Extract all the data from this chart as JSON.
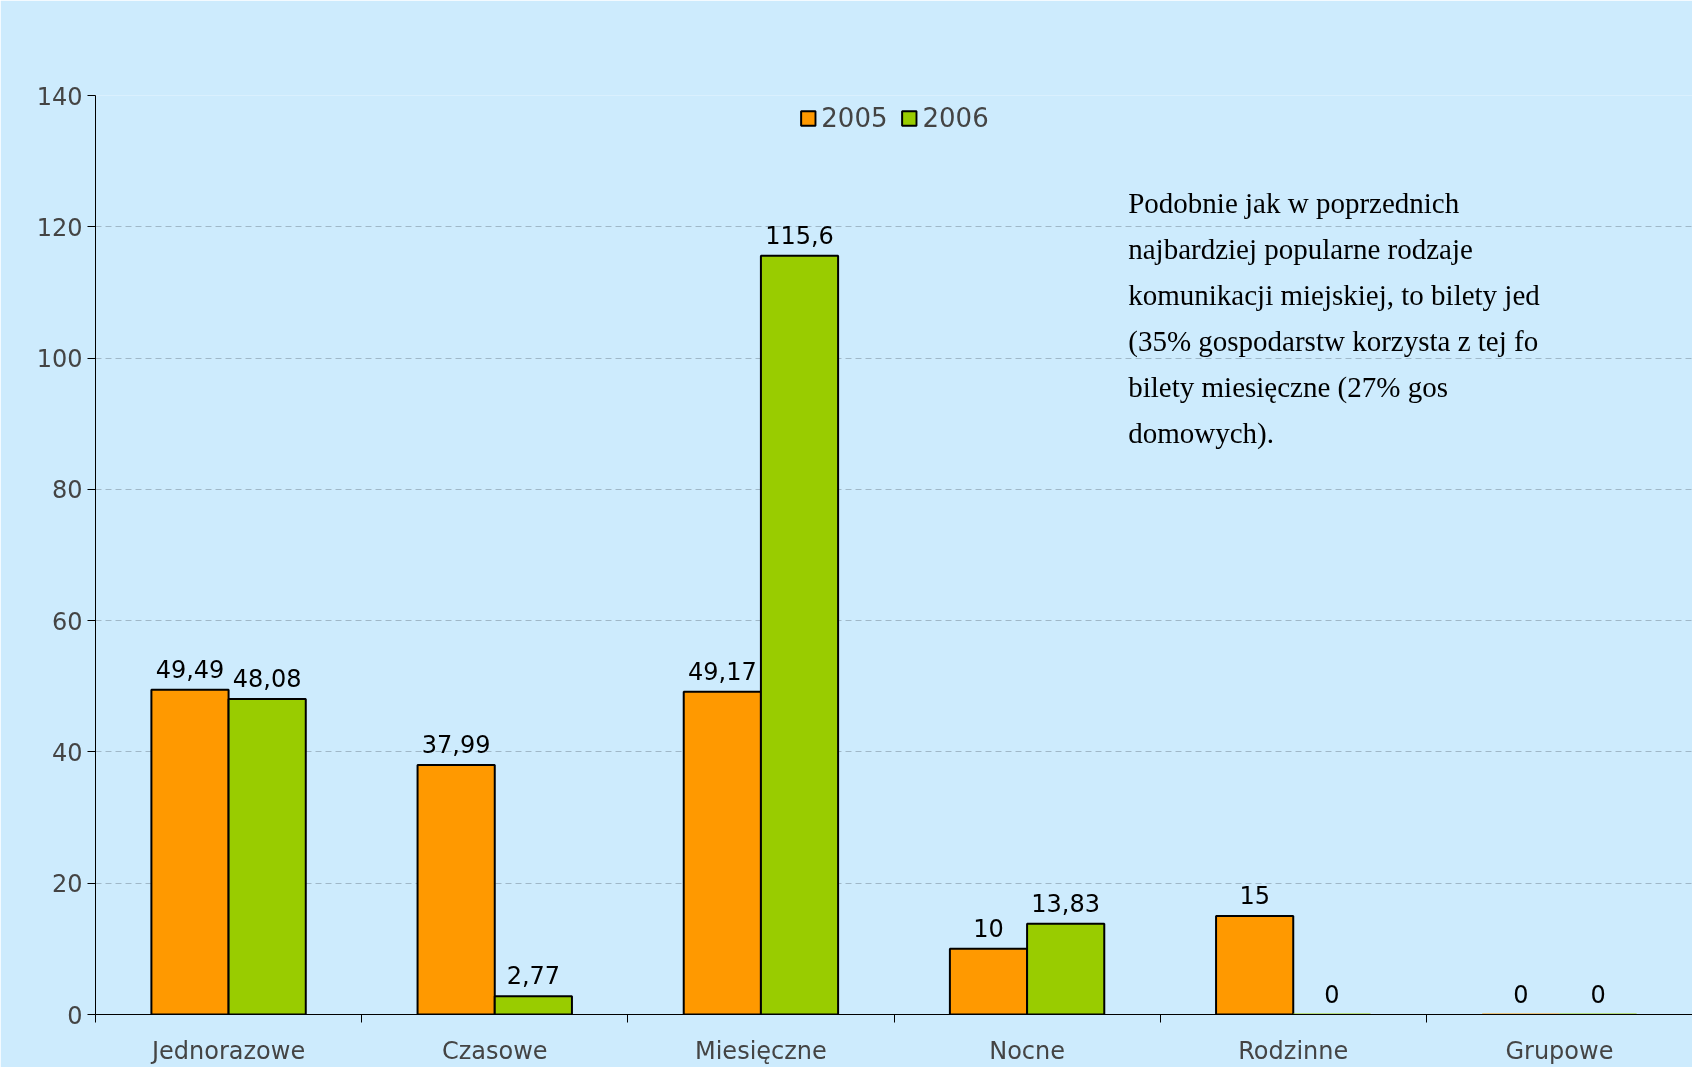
{
  "chart_data": {
    "type": "bar",
    "categories": [
      "Jednorazowe",
      "Czasowe",
      "Miesięczne",
      "Nocne",
      "Rodzinne",
      "Grupowe"
    ],
    "series": [
      {
        "name": "2005",
        "color": "#ff9900",
        "values": [
          49.49,
          37.99,
          49.17,
          10,
          15,
          0
        ],
        "value_labels": [
          "49,49",
          "37,99",
          "49,17",
          "10",
          "15",
          "0"
        ]
      },
      {
        "name": "2006",
        "color": "#99cc00",
        "values": [
          48.08,
          2.77,
          115.6,
          13.83,
          0,
          0
        ],
        "value_labels": [
          "48,08",
          "2,77",
          "115,6",
          "13,83",
          "0",
          "0"
        ]
      }
    ],
    "ylim": [
      0,
      140
    ],
    "yticks": [
      0,
      20,
      40,
      60,
      80,
      100,
      120,
      140
    ],
    "grid": "y",
    "legend": "top",
    "annotations": [
      "Podobnie jak w poprzednich\nnajbardziej popularne rodzaje\nkomunikacji miejskiej, to bilety jed\n(35% gospodarstw korzysta z tej fo\nbilety miesięczne (27% gos\ndomowych)."
    ]
  }
}
